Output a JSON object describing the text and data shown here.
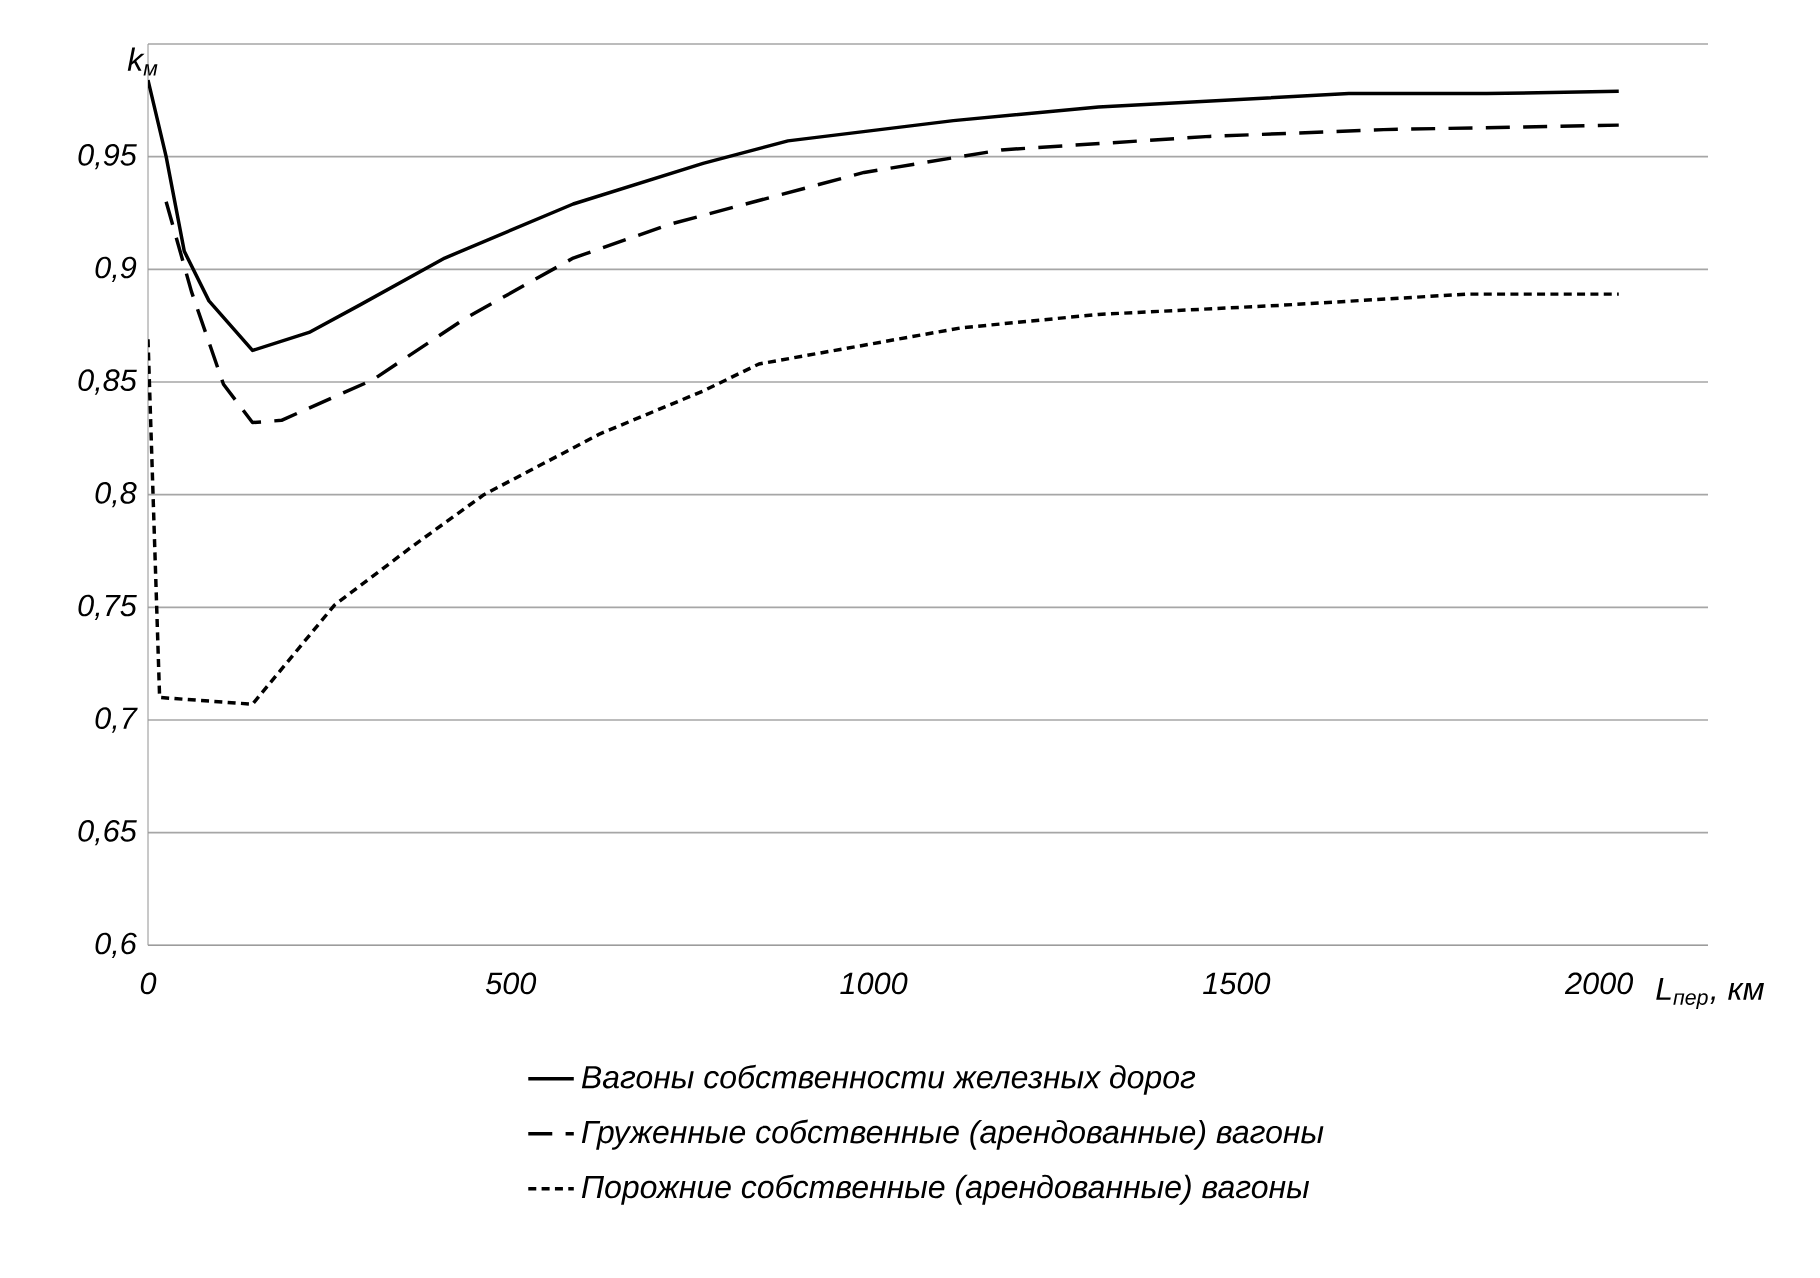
{
  "chart_data": {
    "type": "line",
    "xlabel": "L$_{пер}$, км",
    "ylabel": "k$_{м}$",
    "xlim": [
      0,
      2150
    ],
    "ylim": [
      0.6,
      1.0
    ],
    "xticks": [
      0,
      500,
      1000,
      1500,
      2000
    ],
    "yticks": [
      {
        "value": 0.6,
        "label": "0,6"
      },
      {
        "value": 0.65,
        "label": "0,65"
      },
      {
        "value": 0.7,
        "label": "0,7"
      },
      {
        "value": 0.75,
        "label": "0,75"
      },
      {
        "value": 0.8,
        "label": "0,8"
      },
      {
        "value": 0.85,
        "label": "0,85"
      },
      {
        "value": 0.9,
        "label": "0,9"
      },
      {
        "value": 0.95,
        "label": "0,95"
      },
      {
        "value": 1.0,
        "label": null
      }
    ],
    "grid": "y",
    "legend": "bottom",
    "marker": "none",
    "series": [
      {
        "name": "Вагоны собственности железных дорог",
        "color": "#000000",
        "line_style": "solid",
        "x": [
          0,
          25,
          50,
          84,
          144,
          222,
          291,
          409,
          586,
          765,
          882,
          1110,
          1310,
          1655,
          1845,
          2027
        ],
        "values": [
          0.984,
          0.95,
          0.908,
          0.886,
          0.864,
          0.872,
          0.884,
          0.905,
          0.929,
          0.947,
          0.957,
          0.966,
          0.972,
          0.978,
          0.978,
          0.979
        ]
      },
      {
        "name": "Груженные собственные (арендованные) вагоны",
        "color": "#000000",
        "line_style": "dashed",
        "x": [
          25,
          60,
          104,
          144,
          184,
          310,
          436,
          586,
          719,
          987,
          1176,
          1463,
          1703,
          2027
        ],
        "values": [
          0.93,
          0.89,
          0.849,
          0.832,
          0.833,
          0.851,
          0.878,
          0.905,
          0.92,
          0.943,
          0.953,
          0.959,
          0.962,
          0.964
        ]
      },
      {
        "name": "Порожние собственные (арендованные) вагоны",
        "color": "#000000",
        "line_style": "dotted",
        "x": [
          0,
          16,
          144,
          257,
          364,
          463,
          623,
          765,
          842,
          1120,
          1310,
          1559,
          1818,
          2027
        ],
        "values": [
          0.869,
          0.71,
          0.707,
          0.751,
          0.777,
          0.8,
          0.827,
          0.846,
          0.858,
          0.874,
          0.88,
          0.884,
          0.889,
          0.889
        ]
      }
    ]
  }
}
